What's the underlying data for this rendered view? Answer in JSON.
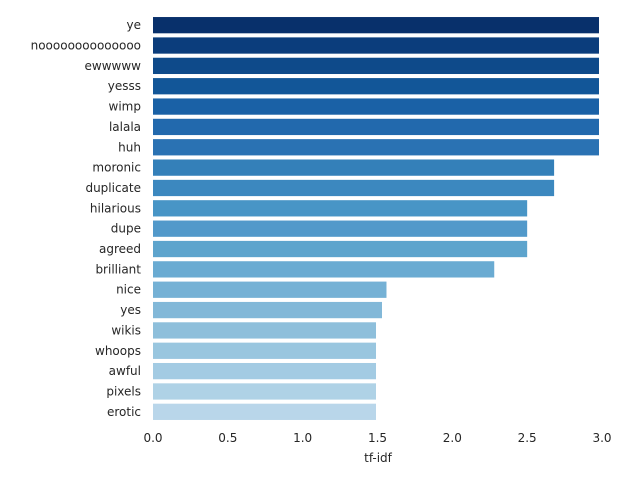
{
  "chart_data": {
    "type": "bar",
    "orientation": "horizontal",
    "categories": [
      "ye",
      "noooooooooooooo",
      "ewwwww",
      "yesss",
      "wimp",
      "lalala",
      "huh",
      "moronic",
      "duplicate",
      "hilarious",
      "dupe",
      "agreed",
      "brilliant",
      "nice",
      "yes",
      "wikis",
      "whoops",
      "awful",
      "pixels",
      "erotic"
    ],
    "values": [
      2.98,
      2.98,
      2.98,
      2.98,
      2.98,
      2.98,
      2.98,
      2.68,
      2.68,
      2.5,
      2.5,
      2.5,
      2.28,
      1.56,
      1.53,
      1.49,
      1.49,
      1.49,
      1.49,
      1.49
    ],
    "colors": [
      "#08306b",
      "#0b3d7c",
      "#0e4a8a",
      "#125698",
      "#1a61a6",
      "#2269ad",
      "#2a72b3",
      "#3480b9",
      "#3c88bf",
      "#4895c6",
      "#5299ca",
      "#5da4cd",
      "#6aabd2",
      "#75b1d5",
      "#82b8d8",
      "#8ebfdb",
      "#99c6df",
      "#a3cbe3",
      "#afd2e6",
      "#b9d6ea"
    ],
    "title": "",
    "xlabel": "tf-idf",
    "ylabel": "",
    "xlim": [
      0.0,
      3.0
    ],
    "xticks": [
      "0.0",
      "0.5",
      "1.0",
      "1.5",
      "2.0",
      "2.5",
      "3.0"
    ],
    "grid": false,
    "legend": "none"
  }
}
